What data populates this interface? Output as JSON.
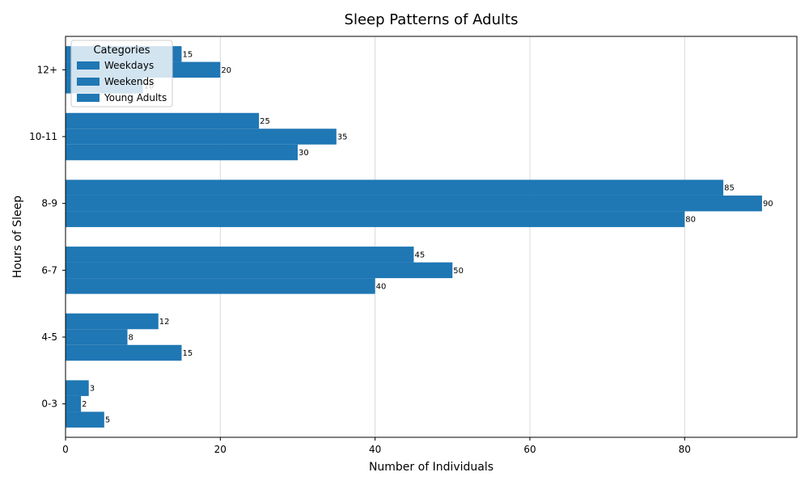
{
  "chart_data": {
    "type": "bar",
    "orientation": "horizontal",
    "title": "Sleep Patterns of Adults",
    "xlabel": "Number of Individuals",
    "ylabel": "Hours of Sleep",
    "categories": [
      "0-3",
      "4-5",
      "6-7",
      "8-9",
      "10-11",
      "12+"
    ],
    "series": [
      {
        "name": "Weekdays",
        "values": [
          3,
          12,
          45,
          85,
          25,
          15
        ]
      },
      {
        "name": "Weekends",
        "values": [
          2,
          8,
          50,
          90,
          35,
          20
        ]
      },
      {
        "name": "Young Adults",
        "values": [
          5,
          15,
          40,
          80,
          30,
          10
        ]
      }
    ],
    "xlim": [
      0,
      94.5
    ],
    "xticks": [
      0,
      20,
      40,
      60,
      80
    ],
    "grid": "x",
    "legend": {
      "title": "Categories",
      "placement": "top-left"
    },
    "bar_color": "#1f77b4"
  }
}
